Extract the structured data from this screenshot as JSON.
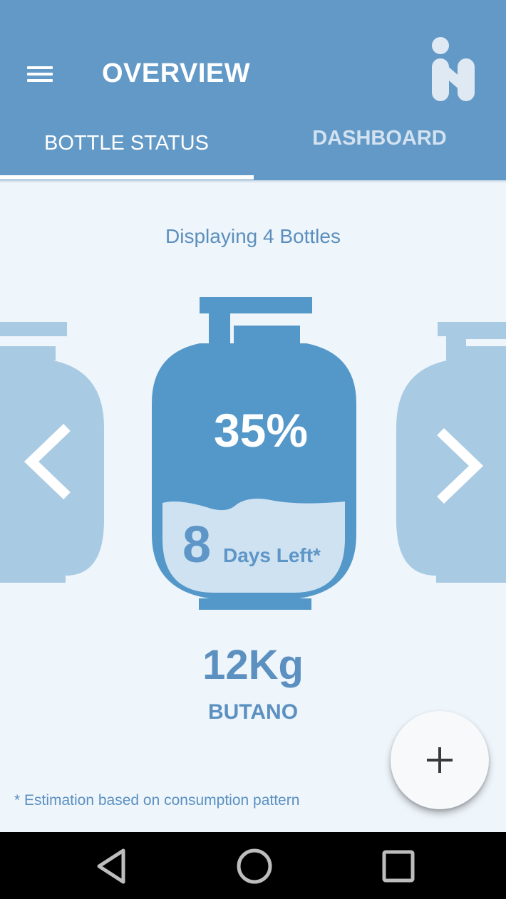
{
  "header": {
    "title": "OVERVIEW"
  },
  "tabs": [
    {
      "label": "BOTTLE STATUS",
      "active": true
    },
    {
      "label": "DASHBOARD",
      "active": false
    }
  ],
  "main": {
    "display_count_text": "Displaying 4 Bottles",
    "bottle": {
      "fill_percent_text": "35%",
      "fill_level": 0.35,
      "days_left_number": "8",
      "days_left_label": "Days Left*",
      "weight": "12Kg",
      "gas_type": "BUTANO"
    },
    "footnote": "* Estimation based on consumption pattern"
  },
  "fab": {
    "icon": "plus-icon"
  },
  "system_nav": {
    "back_icon": "triangle-back-icon",
    "home_icon": "circle-home-icon",
    "recents_icon": "square-recents-icon"
  },
  "colors": {
    "appbar": "#6399c6",
    "background": "#eef5fb",
    "bottle_active": "#5498c9",
    "bottle_side": "#a8cae3",
    "liquid": "#cfe2f1",
    "text_accent": "#5b90c0"
  }
}
